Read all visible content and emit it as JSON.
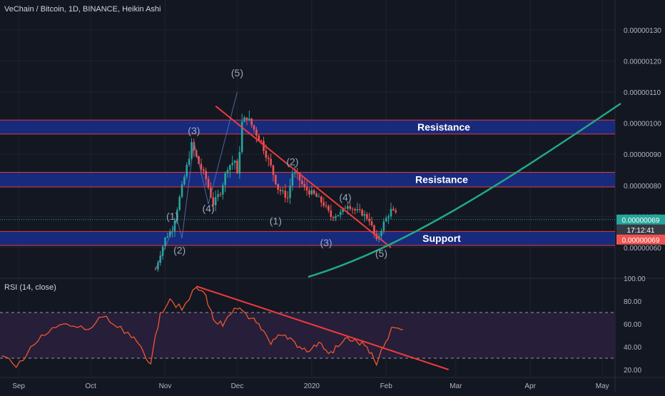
{
  "title": "VeChain / Bitcoin, 1D, BINANCE, Heikin Ashi",
  "colors": {
    "background": "#131722",
    "grid": "#1f2430",
    "text": "#b2b5be",
    "up": "#26a69a",
    "down": "#ef5350",
    "zone_fill": "#1a2e8c",
    "zone_border": "#e53935",
    "trendline": "#ef3b3b",
    "curve": "#23a881",
    "wave_label": "#9aa7b8",
    "rsi_line": "#f0572e",
    "rsi_band": "#2a1f3d",
    "price_tag": "#26a69a",
    "price_tag2": "#ef5350"
  },
  "chart_data": [
    {
      "type": "candlestick",
      "style": "Heikin Ashi",
      "title": "VeChain / Bitcoin, 1D, BINANCE, Heikin Ashi",
      "y_ticks": [
        "0.00000060",
        "0.00000070",
        "0.00000080",
        "0.00000090",
        "0.00000100",
        "0.00000110",
        "0.00000120",
        "0.00000130"
      ],
      "x_ticks": [
        "Sep",
        "Oct",
        "Nov",
        "Dec",
        "2020",
        "Feb",
        "Mar",
        "Apr",
        "May"
      ],
      "ylim": [
        5.5e-07,
        1.38e-06
      ],
      "grid": true,
      "path_close_points": [
        {
          "date": "2019-10-28",
          "v": 5.3e-07
        },
        {
          "date": "2019-11-01",
          "v": 6.3e-07
        },
        {
          "date": "2019-11-04",
          "v": 6.6e-07
        },
        {
          "date": "2019-11-07",
          "v": 7.6e-07
        },
        {
          "date": "2019-11-10",
          "v": 8.6e-07
        },
        {
          "date": "2019-11-12",
          "v": 9.3e-07
        },
        {
          "date": "2019-11-15",
          "v": 8.7e-07
        },
        {
          "date": "2019-11-18",
          "v": 8.2e-07
        },
        {
          "date": "2019-11-21",
          "v": 7.4e-07
        },
        {
          "date": "2019-11-24",
          "v": 7.8e-07
        },
        {
          "date": "2019-11-27",
          "v": 8.6e-07
        },
        {
          "date": "2019-11-30",
          "v": 8.8e-07
        },
        {
          "date": "2019-12-01",
          "v": 8.3e-07
        },
        {
          "date": "2019-12-03",
          "v": 1e-06
        },
        {
          "date": "2019-12-05",
          "v": 1.02e-06
        },
        {
          "date": "2019-12-08",
          "v": 9.8e-07
        },
        {
          "date": "2019-12-11",
          "v": 9.4e-07
        },
        {
          "date": "2019-12-15",
          "v": 8.6e-07
        },
        {
          "date": "2019-12-18",
          "v": 7.9e-07
        },
        {
          "date": "2019-12-22",
          "v": 7.6e-07
        },
        {
          "date": "2019-12-24",
          "v": 8.4e-07
        },
        {
          "date": "2019-12-26",
          "v": 8.3e-07
        },
        {
          "date": "2019-12-29",
          "v": 7.9e-07
        },
        {
          "date": "2020-01-02",
          "v": 7.7e-07
        },
        {
          "date": "2020-01-06",
          "v": 7.4e-07
        },
        {
          "date": "2020-01-09",
          "v": 7e-07
        },
        {
          "date": "2020-01-13",
          "v": 7.1e-07
        },
        {
          "date": "2020-01-16",
          "v": 7.4e-07
        },
        {
          "date": "2020-01-19",
          "v": 7.2e-07
        },
        {
          "date": "2020-01-22",
          "v": 7.1e-07
        },
        {
          "date": "2020-01-25",
          "v": 6.9e-07
        },
        {
          "date": "2020-01-28",
          "v": 6.2e-07
        },
        {
          "date": "2020-01-31",
          "v": 6.8e-07
        },
        {
          "date": "2020-02-03",
          "v": 7.2e-07
        },
        {
          "date": "2020-02-06",
          "v": 7e-07
        }
      ],
      "zones": [
        {
          "label": "Resistance",
          "from": 9.65e-07,
          "to": 1.01e-06
        },
        {
          "label": "Resistance",
          "from": 7.95e-07,
          "to": 8.42e-07
        },
        {
          "label": "Support",
          "from": 6.07e-07,
          "to": 6.52e-07
        }
      ],
      "wave_labels": [
        {
          "text": "(1)",
          "date": "2019-11-04",
          "v": 6.9e-07
        },
        {
          "text": "(2)",
          "date": "2019-11-07",
          "v": 5.8e-07
        },
        {
          "text": "(3)",
          "date": "2019-11-13",
          "v": 9.65e-07
        },
        {
          "text": "(4)",
          "date": "2019-11-19",
          "v": 7.15e-07
        },
        {
          "text": "(5)",
          "date": "2019-12-01",
          "v": 1.15e-06
        },
        {
          "text": "(1)",
          "date": "2019-12-17",
          "v": 6.75e-07
        },
        {
          "text": "(2)",
          "date": "2019-12-24",
          "v": 8.65e-07
        },
        {
          "text": "(3)",
          "date": "2020-01-07",
          "v": 6.05e-07
        },
        {
          "text": "(4)",
          "date": "2020-01-15",
          "v": 7.5e-07
        },
        {
          "text": "(5)",
          "date": "2020-01-30",
          "v": 5.7e-07
        }
      ],
      "price_tags": [
        "0.00000069",
        "17:12:41",
        "0.00000069"
      ]
    },
    {
      "type": "line",
      "title": "RSI (14, close)",
      "y_ticks": [
        "20.00",
        "40.00",
        "60.00",
        "80.00",
        "100.00"
      ],
      "ylim": [
        15,
        102
      ],
      "band": [
        30,
        70
      ],
      "points": [
        {
          "date": "2019-08-25",
          "v": 32
        },
        {
          "date": "2019-08-31",
          "v": 22
        },
        {
          "date": "2019-09-06",
          "v": 40
        },
        {
          "date": "2019-09-12",
          "v": 50
        },
        {
          "date": "2019-09-18",
          "v": 59
        },
        {
          "date": "2019-09-24",
          "v": 58
        },
        {
          "date": "2019-09-30",
          "v": 55
        },
        {
          "date": "2019-10-06",
          "v": 66
        },
        {
          "date": "2019-10-12",
          "v": 57
        },
        {
          "date": "2019-10-18",
          "v": 48
        },
        {
          "date": "2019-10-22",
          "v": 40
        },
        {
          "date": "2019-10-26",
          "v": 25
        },
        {
          "date": "2019-10-30",
          "v": 70
        },
        {
          "date": "2019-11-03",
          "v": 82
        },
        {
          "date": "2019-11-08",
          "v": 72
        },
        {
          "date": "2019-11-14",
          "v": 92
        },
        {
          "date": "2019-11-18",
          "v": 85
        },
        {
          "date": "2019-11-21",
          "v": 64
        },
        {
          "date": "2019-11-25",
          "v": 58
        },
        {
          "date": "2019-11-29",
          "v": 70
        },
        {
          "date": "2019-12-02",
          "v": 74
        },
        {
          "date": "2019-12-07",
          "v": 65
        },
        {
          "date": "2019-12-11",
          "v": 55
        },
        {
          "date": "2019-12-15",
          "v": 42
        },
        {
          "date": "2019-12-19",
          "v": 50
        },
        {
          "date": "2019-12-23",
          "v": 48
        },
        {
          "date": "2019-12-27",
          "v": 40
        },
        {
          "date": "2019-12-31",
          "v": 36
        },
        {
          "date": "2020-01-04",
          "v": 44
        },
        {
          "date": "2020-01-08",
          "v": 34
        },
        {
          "date": "2020-01-12",
          "v": 40
        },
        {
          "date": "2020-01-16",
          "v": 48
        },
        {
          "date": "2020-01-20",
          "v": 44
        },
        {
          "date": "2020-01-24",
          "v": 40
        },
        {
          "date": "2020-01-28",
          "v": 24
        },
        {
          "date": "2020-02-01",
          "v": 45
        },
        {
          "date": "2020-02-04",
          "v": 57
        },
        {
          "date": "2020-02-08",
          "v": 55
        }
      ]
    }
  ]
}
